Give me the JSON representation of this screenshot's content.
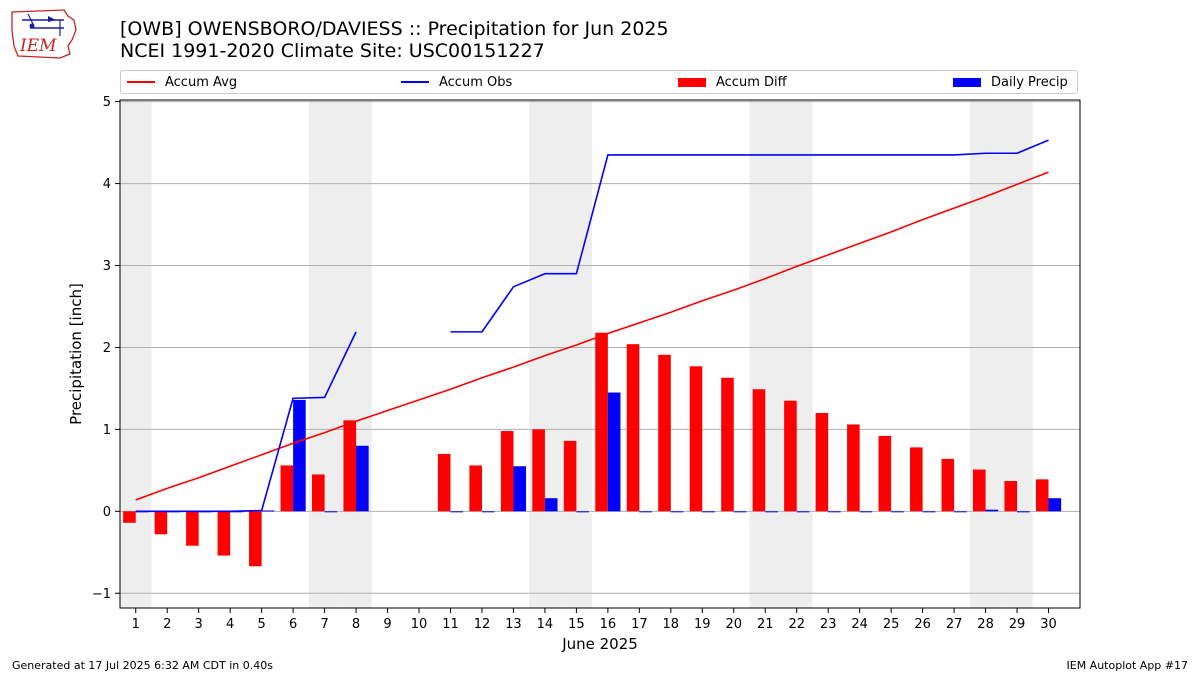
{
  "header": {
    "title_line1": "[OWB] OWENSBORO/DAVIESS :: Precipitation for Jun 2025",
    "title_line2": "NCEI 1991-2020 Climate Site: USC00151227"
  },
  "logo": {
    "text": "IEM",
    "color": "#cc2222"
  },
  "footer": {
    "left": "Generated at 17 Jul 2025 6:32 AM CDT in 0.40s",
    "right": "IEM Autoplot App #17"
  },
  "legend": {
    "accum_avg": "Accum Avg",
    "accum_obs": "Accum Obs",
    "accum_diff": "Accum Diff",
    "daily_precip": "Daily Precip"
  },
  "colors": {
    "accum_avg": "#ff0000",
    "accum_obs": "#0000ff",
    "accum_diff": "#ff0000",
    "daily_precip": "#0000ff",
    "weekend_shade": "#eeeeee",
    "grid": "#b0b0b0"
  },
  "chart_data": {
    "type": "bar",
    "xlabel": "June 2025",
    "ylabel": "Precipitation [inch]",
    "xlim": [
      0.5,
      31.0
    ],
    "ylim": [
      -1.18,
      5.02
    ],
    "yticks": [
      -1,
      0,
      1,
      2,
      3,
      4,
      5
    ],
    "grid": "horizontal",
    "legend_position": "top",
    "weekend_days": [
      1,
      7,
      8,
      14,
      15,
      21,
      22,
      28,
      29
    ],
    "days": [
      1,
      2,
      3,
      4,
      5,
      6,
      7,
      8,
      9,
      10,
      11,
      12,
      13,
      14,
      15,
      16,
      17,
      18,
      19,
      20,
      21,
      22,
      23,
      24,
      25,
      26,
      27,
      28,
      29,
      30
    ],
    "series": [
      {
        "name": "Accum Avg",
        "kind": "line",
        "values": [
          0.14,
          0.28,
          0.41,
          0.55,
          0.69,
          0.83,
          0.96,
          1.1,
          1.23,
          1.36,
          1.49,
          1.63,
          1.76,
          1.9,
          2.03,
          2.17,
          2.3,
          2.43,
          2.57,
          2.7,
          2.84,
          2.99,
          3.13,
          3.27,
          3.41,
          3.56,
          3.7,
          3.84,
          3.99,
          4.14
        ]
      },
      {
        "name": "Accum Obs",
        "kind": "line",
        "values": [
          0.0,
          0.0,
          0.0,
          0.0,
          0.01,
          1.38,
          1.39,
          2.19,
          null,
          null,
          2.19,
          2.19,
          2.74,
          2.9,
          2.9,
          4.35,
          4.35,
          4.35,
          4.35,
          4.35,
          4.35,
          4.35,
          4.35,
          4.35,
          4.35,
          4.35,
          4.35,
          4.37,
          4.37,
          4.53
        ]
      },
      {
        "name": "Accum Diff",
        "kind": "bar",
        "values": [
          -0.14,
          -0.28,
          -0.42,
          -0.54,
          -0.67,
          0.56,
          0.45,
          1.11,
          null,
          null,
          0.7,
          0.56,
          0.98,
          1.0,
          0.86,
          2.18,
          2.04,
          1.91,
          1.77,
          1.63,
          1.49,
          1.35,
          1.2,
          1.06,
          0.92,
          0.78,
          0.64,
          0.51,
          0.37,
          0.39
        ]
      },
      {
        "name": "Daily Precip",
        "kind": "bar",
        "values": [
          0.0,
          0.0,
          0.0,
          0.0,
          0.01,
          1.36,
          0.0,
          0.8,
          null,
          null,
          0.0,
          0.0,
          0.55,
          0.16,
          0.0,
          1.45,
          0.0,
          0.0,
          0.0,
          0.0,
          0.0,
          0.0,
          0.0,
          0.0,
          0.0,
          0.0,
          0.0,
          0.02,
          0.0,
          0.16
        ]
      }
    ]
  }
}
